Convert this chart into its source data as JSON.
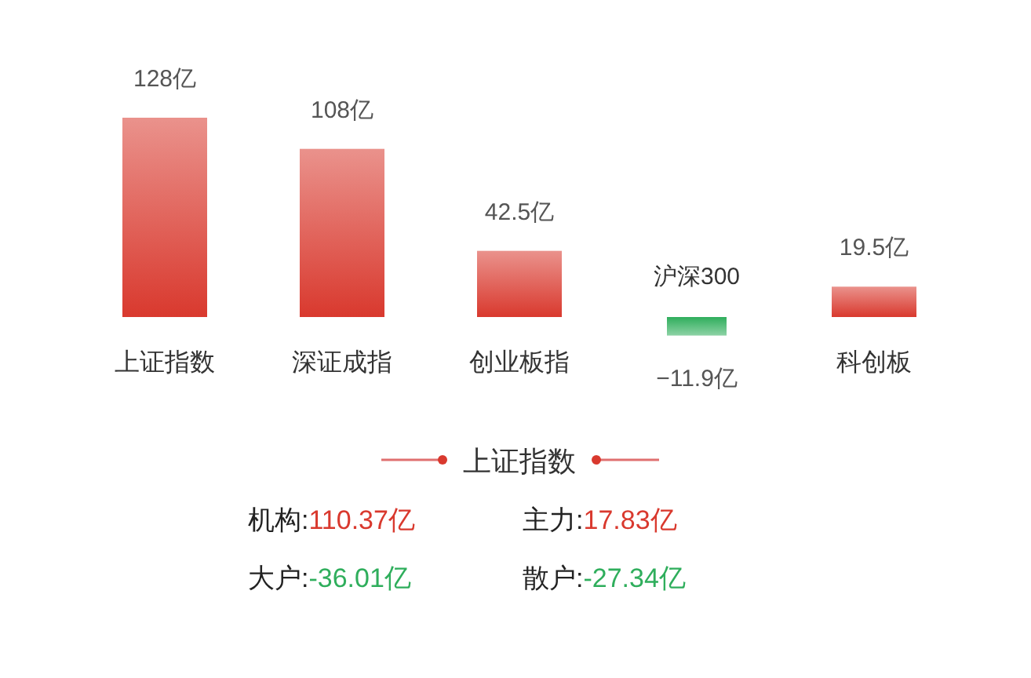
{
  "chart_data": [
    {
      "type": "bar",
      "categories": [
        "上证指数",
        "深证成指",
        "创业板指",
        "沪深300",
        "科创板"
      ],
      "values": [
        128,
        108,
        42.5,
        -11.9,
        19.5
      ],
      "colors": [
        "#d9392e",
        "#d9392e",
        "#d9392e",
        "#2fae5c",
        "#d9392e"
      ],
      "value_labels": [
        "128亿",
        "108亿",
        "42.5亿",
        "−11.9亿",
        "19.5亿"
      ]
    },
    {
      "type": "other",
      "title": "上证指数",
      "annotations": [
        "机构:110.37亿",
        "主力:17.83亿",
        "大户:-36.01亿",
        "散户:-27.34亿"
      ],
      "colors": [
        "#d9392e",
        "#d9392e",
        "#2fae5c",
        "#2fae5c"
      ]
    }
  ]
}
